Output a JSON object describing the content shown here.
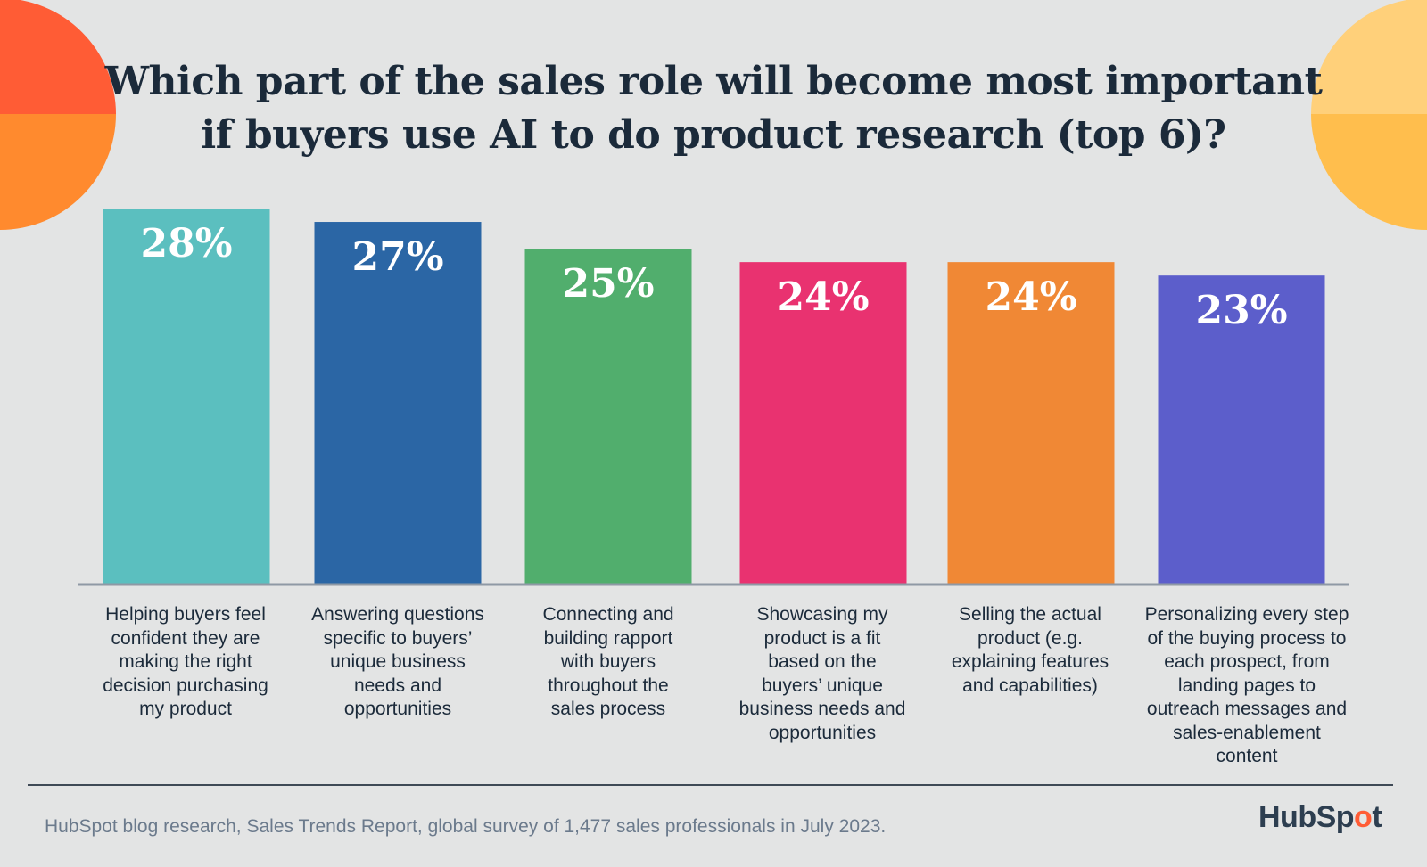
{
  "title_lines": [
    "Which part of the sales role will become most important",
    "if buyers use AI to do product research (top 6)?"
  ],
  "colors": {
    "background": "#e3e4e4",
    "title": "#1b2a3a",
    "deco_left_top": "#ff5c35",
    "deco_left_bottom": "#ff8a2e",
    "deco_right_top": "#ffd07a",
    "deco_right_bottom": "#ffbe4d",
    "brand_accent": "#ff5c35"
  },
  "chart_data": {
    "type": "bar",
    "title": "Which part of the sales role will become most important if buyers use AI to do product research (top 6)?",
    "unit": "%",
    "ylim": [
      0,
      28
    ],
    "categories": [
      "Helping buyers feel confident they are making the right decision purchasing my product",
      "Answering questions specific to buyers' unique business needs and opportunities",
      "Connecting and building rapport with buyers throughout the sales process",
      "Showcasing my product is a fit based on the buyers' unique business needs and opportunities",
      "Selling the actual product (e.g. explaining features and capabilities)",
      "Personalizing every step of the buying process to each prospect, from landing pages to outreach messages and sales-enablement content"
    ],
    "values": [
      28,
      27,
      25,
      24,
      24,
      23
    ],
    "data_labels": [
      "28%",
      "27%",
      "25%",
      "24%",
      "24%",
      "23%"
    ],
    "bar_colors": [
      "#5bbfbf",
      "#2b66a5",
      "#51ae6d",
      "#e93270",
      "#f08835",
      "#5c5ecb"
    ]
  },
  "category_label_lines": [
    [
      "Helping buyers feel",
      "confident they are",
      "making the right",
      "decision purchasing",
      "my product"
    ],
    [
      "Answering questions",
      "specific to buyers’",
      "unique business",
      "needs and",
      "opportunities"
    ],
    [
      "Connecting and",
      "building rapport",
      "with buyers",
      "throughout the",
      "sales process"
    ],
    [
      "Showcasing my",
      "product is a fit",
      "based on the",
      "buyers’ unique",
      "business needs and",
      "opportunities"
    ],
    [
      "Selling the actual",
      "product (e.g.",
      "explaining features",
      "and capabilities)"
    ],
    [
      "Personalizing every step",
      "of the buying process to",
      "each prospect, from",
      "landing pages to",
      "outreach messages and",
      "sales-enablement",
      "content"
    ]
  ],
  "source": "HubSpot blog research, Sales Trends Report, global survey of 1,477 sales professionals in July 2023.",
  "logo": {
    "text_before": "HubSp",
    "text_spot": "o",
    "text_after": "t",
    "icon": "sprocket-icon"
  }
}
